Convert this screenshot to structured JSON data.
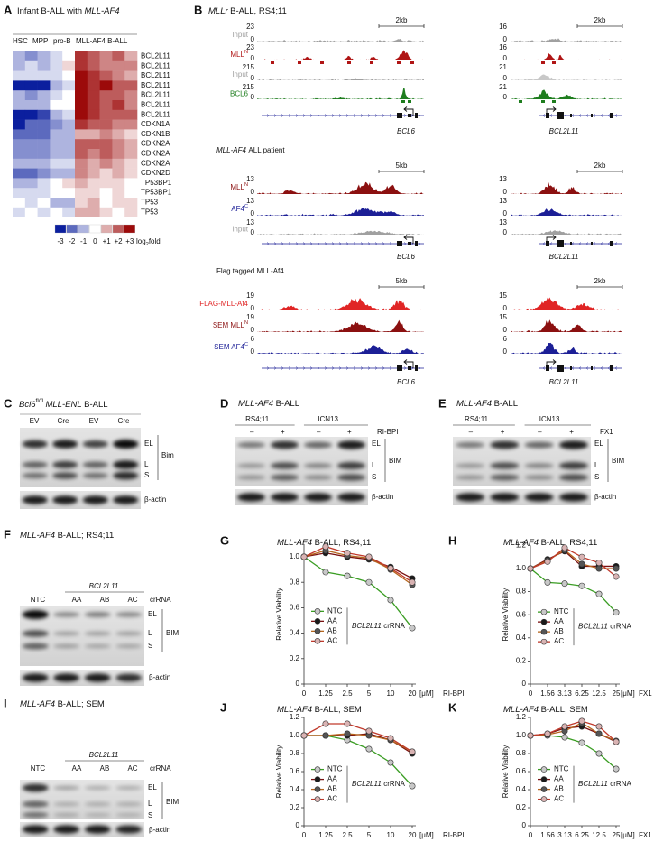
{
  "panels": {
    "B": {
      "letter": "B",
      "title": [
        "MLLr",
        "B-ALL, RS4;11"
      ],
      "sections": [
        {
          "heading": [],
          "tracks": [
            {
              "name": "Input",
              "color": "#a0a0a0",
              "ymax_left": 23,
              "ymax_right": 16,
              "ymin": 0
            },
            {
              "name": "MLL",
              "sup": "N",
              "color": "#b01515",
              "ymax_left": 23,
              "ymax_right": 16,
              "ymin": 0
            },
            {
              "name": "Input",
              "color": "#a0a0a0",
              "ymax_left": 215,
              "ymax_right": 21,
              "ymin": 0
            },
            {
              "name": "BCL6",
              "color": "#1e7d1e",
              "ymax_left": 215,
              "ymax_right": 21,
              "ymin": 0
            }
          ],
          "scale_left": "2kb",
          "scale_right": "2kb",
          "gene_left": "BCL6",
          "gene_right": "BCL2L11"
        },
        {
          "heading": [
            "MLL-AF4",
            "ALL patient"
          ],
          "tracks": [
            {
              "name": "MLL",
              "sup": "N",
              "color": "#8b1010",
              "ymax_left": 13,
              "ymax_right": 13,
              "ymin": 0
            },
            {
              "name": "AF4",
              "sup": "C",
              "color": "#1c1f96",
              "ymax_left": 13,
              "ymax_right": 13,
              "ymin": 0
            },
            {
              "name": "Input",
              "color": "#a0a0a0",
              "ymax_left": 13,
              "ymax_right": 13,
              "ymin": 0
            }
          ],
          "scale_left": "5kb",
          "scale_right": "2kb",
          "gene_left": "BCL6",
          "gene_right": "BCL2L11"
        },
        {
          "heading": [
            "Flag tagged MLL-Af4"
          ],
          "tracks": [
            {
              "name": "FLAG-MLL-Af4",
              "color": "#e02525",
              "ymax_left": 19,
              "ymax_right": 15,
              "ymin": 0
            },
            {
              "name": "SEM MLL",
              "sup": "N",
              "color": "#8b1010",
              "ymax_left": 19,
              "ymax_right": 15,
              "ymin": 0
            },
            {
              "name": "SEM AF4",
              "sup": "C",
              "color": "#1c1f96",
              "ymax_left": 6,
              "ymax_right": 6,
              "ymin": 0
            }
          ],
          "scale_left": "5kb",
          "scale_right": "2kb",
          "gene_left": "BCL6",
          "gene_right": "BCL2L11"
        }
      ]
    },
    "C": {
      "letter": "C",
      "title": [
        "Bcl6",
        "fl/fl",
        "MLL-ENL",
        "B-ALL"
      ],
      "lanes": [
        "EV",
        "Cre",
        "EV",
        "Cre"
      ],
      "bands": [
        "EL",
        "L",
        "S"
      ],
      "protein": "Bim",
      "loading": "β-actin"
    },
    "D": {
      "letter": "D",
      "title": [
        "MLL-AF4",
        "B-ALL"
      ],
      "cell_lines": [
        "RS4;11",
        "ICN13"
      ],
      "signs": [
        "–",
        "+",
        "–",
        "+"
      ],
      "treatment": "RI-BPI",
      "bands": [
        "EL",
        "L",
        "S"
      ],
      "protein": "BIM",
      "loading": "β-actin"
    },
    "E": {
      "letter": "E",
      "title": [
        "MLL-AF4",
        "B-ALL"
      ],
      "cell_lines": [
        "RS4;11",
        "ICN13"
      ],
      "signs": [
        "–",
        "+",
        "–",
        "+"
      ],
      "treatment": "FX1",
      "bands": [
        "EL",
        "L",
        "S"
      ],
      "protein": "BIM",
      "loading": "β-actin"
    },
    "F": {
      "letter": "F",
      "title": [
        "MLL-AF4",
        "B-ALL; RS4;11"
      ],
      "gene": "BCL2L11",
      "lanes": [
        "NTC",
        "AA",
        "AB",
        "AC"
      ],
      "lane_label": "crRNA",
      "bands": [
        "EL",
        "L",
        "S"
      ],
      "protein": "BIM",
      "loading": "β-actin"
    },
    "I": {
      "letter": "I",
      "title": [
        "MLL-AF4",
        "B-ALL; SEM"
      ],
      "gene": "BCL2L11",
      "lanes": [
        "NTC",
        "AA",
        "AB",
        "AC"
      ],
      "lane_label": "crRNA",
      "bands": [
        "EL",
        "L",
        "S"
      ],
      "protein": "BIM",
      "loading": "β-actin"
    }
  },
  "chart_data": [
    {
      "type": "heatmap",
      "letter": "A",
      "title": [
        "Infant B-ALL with",
        "MLL-AF4"
      ],
      "column_groups": [
        "HSC",
        "MPP",
        "pro-B",
        "MLL-AF4 B-ALL"
      ],
      "rows": [
        "BCL2L11",
        "BCL2L11",
        "BCL2L11",
        "BCL2L11",
        "BCL2L11",
        "BCL2L11",
        "BCL2L11",
        "CDKN1A",
        "CDKN1B",
        "CDKN2A",
        "CDKN2A",
        "CDKN2A",
        "CDKN2D",
        "TP53BP1",
        "TP53BP1",
        "TP53",
        "TP53"
      ],
      "values": [
        [
          -1,
          -1.5,
          -1,
          -0.5,
          0,
          2.5,
          2,
          1.5,
          2,
          1
        ],
        [
          -1,
          -0.5,
          -1,
          -0.5,
          0.5,
          2.5,
          2,
          1.5,
          1.5,
          1.5
        ],
        [
          -0.5,
          -0.5,
          -0.5,
          -0.5,
          0,
          3,
          2.5,
          2,
          1.5,
          1
        ],
        [
          -3,
          -3,
          -3,
          -1,
          -0.5,
          3,
          2.5,
          3,
          2,
          2
        ],
        [
          -1,
          -1.5,
          -1,
          -0.5,
          0,
          3,
          2.5,
          2,
          2,
          1.5
        ],
        [
          -1,
          -1,
          -1,
          0,
          0,
          3,
          2.5,
          2,
          2.5,
          1.5
        ],
        [
          -3,
          -3,
          -2.5,
          -1,
          -0.5,
          3,
          2.5,
          2,
          2,
          2
        ],
        [
          -3,
          -2,
          -2,
          -1.5,
          -1,
          2.5,
          2,
          2,
          1.5,
          1.5
        ],
        [
          -2,
          -2,
          -2,
          -1,
          -1,
          1,
          1,
          1.5,
          1,
          0.5
        ],
        [
          -1.5,
          -1.5,
          -1.5,
          -1,
          -1,
          2,
          2,
          2,
          1.5,
          1
        ],
        [
          -1.5,
          -1.5,
          -1.5,
          -1,
          -1,
          2,
          1.5,
          2,
          1.5,
          1
        ],
        [
          -1,
          -1,
          -1,
          -0.5,
          -0.5,
          1.5,
          1,
          1.5,
          1,
          0.5
        ],
        [
          -2,
          -2,
          -1.5,
          -1,
          -1,
          1.5,
          1,
          0.5,
          1,
          0.5
        ],
        [
          -1,
          -1,
          -0.5,
          0,
          0.5,
          1,
          0.5,
          0.5,
          0.5,
          0
        ],
        [
          -0.5,
          -0.5,
          -0.5,
          0,
          0,
          0.5,
          0.5,
          0,
          0.5,
          0
        ],
        [
          0,
          -0.5,
          0,
          -1,
          -1,
          0.5,
          1,
          0,
          0.5,
          0.5
        ],
        [
          -0.5,
          0,
          -0.5,
          0,
          -0.5,
          1,
          1,
          0.5,
          0,
          0.5
        ]
      ],
      "zlim": [
        -3,
        3
      ],
      "zticks": [
        -3,
        -2,
        -1,
        0,
        {
          "value": 1,
          "label": "+1"
        },
        {
          "value": 2,
          "label": "+2"
        },
        {
          "value": 3,
          "label": "+3"
        }
      ],
      "colorbar_label": [
        "log",
        "2",
        "fold"
      ],
      "colors": [
        "#0b1f9e",
        "#ffffff",
        "#9c0a0a"
      ]
    },
    {
      "type": "line",
      "letter": "G",
      "title": [
        "MLL-AF4",
        "B-ALL; RS4;11"
      ],
      "ylabel": "Relative Viability",
      "categories": [
        "0",
        "1.25",
        "2.5",
        "5",
        "10",
        "20"
      ],
      "x_unit": "[μM]",
      "x_label": "RI-BPI",
      "ylim": [
        0,
        1.1
      ],
      "yticks": [
        0,
        0.2,
        0.4,
        0.6,
        0.8,
        {
          "value": 1,
          "label": "1.0"
        }
      ],
      "legend": "lower left",
      "legend_title": [
        "BCL2L11",
        "crRNA"
      ],
      "series": [
        {
          "name": "NTC",
          "color": "#3a9d23",
          "marker_color": "#c8c8c8",
          "values": [
            1.0,
            0.88,
            0.85,
            0.8,
            0.66,
            0.44
          ]
        },
        {
          "name": "AA",
          "color": "#7a1010",
          "marker_color": "#1a1a1a",
          "values": [
            1.0,
            1.03,
            1.0,
            0.98,
            0.92,
            0.83
          ]
        },
        {
          "name": "AB",
          "color": "#b5651d",
          "marker_color": "#555555",
          "values": [
            1.0,
            1.05,
            1.01,
            0.99,
            0.9,
            0.78
          ]
        },
        {
          "name": "AC",
          "color": "#c0392b",
          "marker_color": "#d9b3b3",
          "values": [
            1.0,
            1.08,
            1.03,
            1.0,
            0.91,
            0.8
          ]
        }
      ]
    },
    {
      "type": "line",
      "letter": "H",
      "title": [
        "MLL-AF4",
        "B-ALL; RS4;11"
      ],
      "ylabel": "Relative Viability",
      "categories": [
        "0",
        "1.56",
        "3.13",
        "6.25",
        "12.5",
        "25"
      ],
      "x_unit": "[μM]",
      "x_label": "FX1",
      "ylim": [
        0,
        1.2
      ],
      "yticks": [
        0,
        0.2,
        0.4,
        0.6,
        0.8,
        {
          "value": 1,
          "label": "1.0"
        },
        1.2
      ],
      "legend": "lower left",
      "legend_title": [
        "BCL2L11",
        "crRNA"
      ],
      "series": [
        {
          "name": "NTC",
          "color": "#3a9d23",
          "marker_color": "#c8c8c8",
          "values": [
            1.0,
            0.88,
            0.87,
            0.85,
            0.78,
            0.62
          ]
        },
        {
          "name": "AA",
          "color": "#7a1010",
          "marker_color": "#1a1a1a",
          "values": [
            1.0,
            1.08,
            1.15,
            1.02,
            1.02,
            1.02
          ]
        },
        {
          "name": "AB",
          "color": "#b5651d",
          "marker_color": "#555555",
          "values": [
            1.0,
            1.07,
            1.16,
            1.04,
            1.0,
            1.0
          ]
        },
        {
          "name": "AC",
          "color": "#c0392b",
          "marker_color": "#d9b3b3",
          "values": [
            1.0,
            1.06,
            1.18,
            1.1,
            1.05,
            0.93
          ]
        }
      ]
    },
    {
      "type": "line",
      "letter": "J",
      "title": [
        "MLL-AF4",
        "B-ALL; SEM"
      ],
      "ylabel": "Relative Viability",
      "categories": [
        "0",
        "1.25",
        "2.5",
        "5",
        "10",
        "20"
      ],
      "x_unit": "[μM]",
      "x_label": "RI-BPI",
      "ylim": [
        0,
        1.2
      ],
      "yticks": [
        0,
        0.2,
        0.4,
        0.6,
        0.8,
        {
          "value": 1,
          "label": "1.0"
        },
        1.2
      ],
      "legend": "lower left",
      "legend_title": [
        "BCL2L11",
        "crRNA"
      ],
      "series": [
        {
          "name": "NTC",
          "color": "#3a9d23",
          "marker_color": "#c8c8c8",
          "values": [
            1.0,
            1.0,
            0.95,
            0.85,
            0.7,
            0.44
          ]
        },
        {
          "name": "AA",
          "color": "#7a1010",
          "marker_color": "#1a1a1a",
          "values": [
            1.0,
            1.0,
            1.0,
            1.02,
            0.95,
            0.8
          ]
        },
        {
          "name": "AB",
          "color": "#b5651d",
          "marker_color": "#555555",
          "values": [
            1.0,
            1.0,
            1.02,
            1.0,
            0.95,
            0.82
          ]
        },
        {
          "name": "AC",
          "color": "#c0392b",
          "marker_color": "#d9b3b3",
          "values": [
            1.0,
            1.13,
            1.13,
            1.05,
            0.97,
            0.82
          ]
        }
      ]
    },
    {
      "type": "line",
      "letter": "K",
      "title": [
        "MLL-AF4",
        "B-ALL; SEM"
      ],
      "ylabel": "Relative Viability",
      "categories": [
        "0",
        "1.56",
        "3.13",
        "6.25",
        "12.5",
        "25"
      ],
      "x_unit": "[μM]",
      "x_label": "FX1",
      "ylim": [
        0,
        1.2
      ],
      "yticks": [
        0,
        0.2,
        0.4,
        0.6,
        0.8,
        {
          "value": 1,
          "label": "1.0"
        },
        1.2
      ],
      "legend": "lower left",
      "legend_title": [
        "BCL2L11",
        "crRNA"
      ],
      "series": [
        {
          "name": "NTC",
          "color": "#3a9d23",
          "marker_color": "#c8c8c8",
          "values": [
            1.0,
            1.0,
            0.98,
            0.92,
            0.8,
            0.63
          ]
        },
        {
          "name": "AA",
          "color": "#7a1010",
          "marker_color": "#1a1a1a",
          "values": [
            1.0,
            1.02,
            1.08,
            1.1,
            1.02,
            0.93
          ]
        },
        {
          "name": "AB",
          "color": "#b5651d",
          "marker_color": "#555555",
          "values": [
            1.0,
            1.01,
            1.05,
            1.14,
            1.02,
            0.94
          ]
        },
        {
          "name": "AC",
          "color": "#c0392b",
          "marker_color": "#d9b3b3",
          "values": [
            1.0,
            1.02,
            1.1,
            1.16,
            1.1,
            0.93
          ]
        }
      ]
    }
  ]
}
